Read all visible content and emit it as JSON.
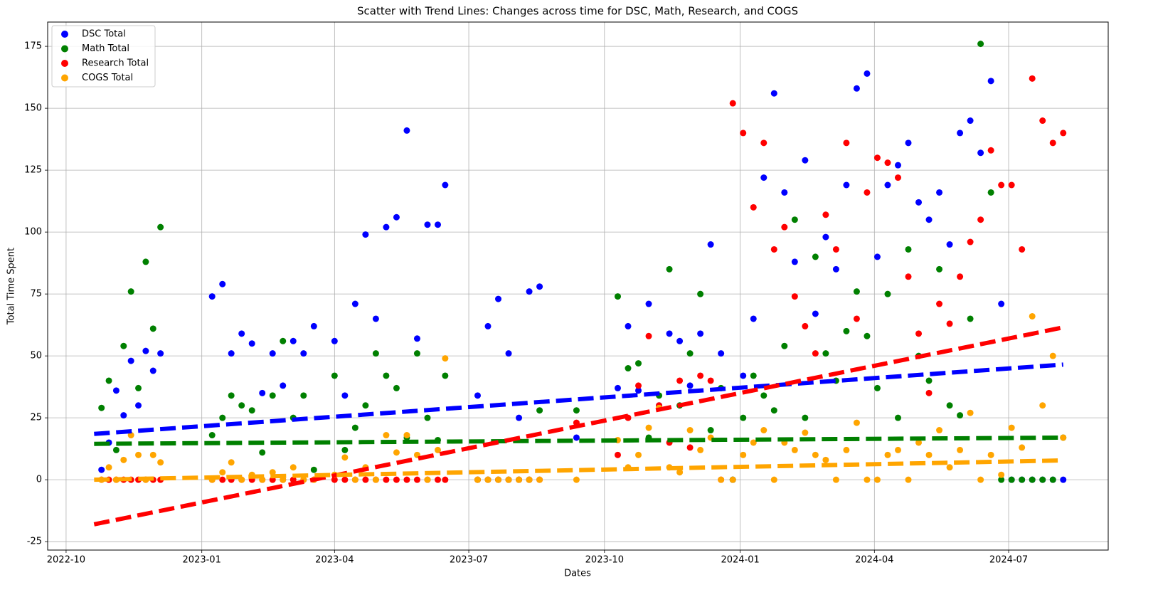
{
  "chart_data": {
    "type": "scatter",
    "title": "Scatter with Trend Lines: Changes across time for DSC, Math, Research, and COGS",
    "x_label": "Dates",
    "y_label": "Total Time Spent",
    "xlim": [
      19253.5,
      19972.5
    ],
    "ylim": [
      -28.4,
      184.8
    ],
    "xticks": [
      {
        "value": 19266,
        "label": "2022-10"
      },
      {
        "value": 19358,
        "label": "2023-01"
      },
      {
        "value": 19448,
        "label": "2023-04"
      },
      {
        "value": 19539,
        "label": "2023-07"
      },
      {
        "value": 19631,
        "label": "2023-10"
      },
      {
        "value": 19723,
        "label": "2024-01"
      },
      {
        "value": 19814,
        "label": "2024-04"
      },
      {
        "value": 19905,
        "label": "2024-07"
      }
    ],
    "yticks": [
      -25,
      0,
      25,
      50,
      75,
      100,
      125,
      150,
      175
    ],
    "grid": true,
    "legend": "upper left",
    "x": [
      19290,
      19295,
      19300,
      19305,
      19310,
      19315,
      19320,
      19325,
      19330,
      19365,
      19372,
      19378,
      19385,
      19392,
      19399,
      19406,
      19413,
      19420,
      19427,
      19434,
      19448,
      19455,
      19462,
      19469,
      19476,
      19483,
      19490,
      19497,
      19504,
      19511,
      19518,
      19523,
      19545,
      19552,
      19559,
      19566,
      19573,
      19580,
      19587,
      19612,
      19640,
      19647,
      19654,
      19661,
      19668,
      19675,
      19682,
      19689,
      19696,
      19703,
      19710,
      19718,
      19725,
      19732,
      19739,
      19746,
      19753,
      19760,
      19767,
      19774,
      19781,
      19788,
      19795,
      19802,
      19809,
      19816,
      19823,
      19830,
      19837,
      19844,
      19851,
      19858,
      19865,
      19872,
      19879,
      19886,
      19893,
      19900,
      19907,
      19914,
      19921,
      19928,
      19935,
      19942
    ],
    "series": [
      {
        "name": "DSC Total",
        "color": "#0000ff",
        "values": [
          4,
          15,
          36,
          26,
          48,
          30,
          52,
          44,
          51,
          74,
          79,
          51,
          59,
          55,
          35,
          51,
          38,
          56,
          51,
          62,
          56,
          34,
          71,
          99,
          65,
          102,
          106,
          141,
          57,
          103,
          103,
          119,
          34,
          62,
          73,
          51,
          25,
          76,
          78,
          17,
          37,
          62,
          36,
          71,
          30,
          59,
          56,
          38,
          59,
          95,
          51,
          0,
          42,
          65,
          122,
          156,
          116,
          88,
          129,
          67,
          98,
          85,
          119,
          158,
          164,
          90,
          119,
          127,
          136,
          112,
          105,
          116,
          95,
          140,
          145,
          132,
          161,
          71,
          0,
          0,
          0,
          0,
          0,
          0
        ],
        "trend": {
          "x": [
            19285,
            19942
          ],
          "values": [
            18.5,
            46.5
          ]
        }
      },
      {
        "name": "Math Total",
        "color": "#008000",
        "values": [
          29,
          40,
          12,
          54,
          76,
          37,
          88,
          61,
          102,
          18,
          25,
          34,
          30,
          28,
          11,
          34,
          56,
          25,
          34,
          4,
          42,
          12,
          21,
          30,
          51,
          42,
          37,
          17,
          51,
          25,
          16,
          42,
          0,
          0,
          0,
          0,
          0,
          0,
          28,
          28,
          74,
          45,
          47,
          17,
          34,
          85,
          30,
          51,
          75,
          20,
          37,
          0,
          25,
          42,
          34,
          28,
          54,
          105,
          25,
          90,
          51,
          40,
          60,
          76,
          58,
          37,
          75,
          25,
          93,
          50,
          40,
          85,
          30,
          26,
          65,
          176,
          116,
          0,
          0,
          0,
          0,
          0,
          0,
          17
        ],
        "trend": {
          "x": [
            19285,
            19942
          ],
          "values": [
            14.5,
            17
          ]
        }
      },
      {
        "name": "Research Total",
        "color": "#ff0000",
        "values": [
          0,
          0,
          0,
          0,
          0,
          0,
          0,
          0,
          0,
          0,
          0,
          0,
          0,
          0,
          0,
          0,
          0,
          0,
          0,
          0,
          0,
          0,
          0,
          0,
          0,
          0,
          0,
          0,
          0,
          0,
          0,
          0,
          0,
          0,
          0,
          0,
          0,
          0,
          0,
          23,
          10,
          25,
          38,
          58,
          30,
          15,
          40,
          13,
          42,
          40,
          0,
          152,
          140,
          110,
          136,
          93,
          102,
          74,
          62,
          51,
          107,
          93,
          136,
          65,
          116,
          130,
          128,
          122,
          82,
          59,
          35,
          71,
          63,
          82,
          96,
          105,
          133,
          119,
          119,
          93,
          162,
          145,
          136,
          140
        ],
        "trend": {
          "x": [
            19285,
            19942
          ],
          "values": [
            -18,
            61.5
          ]
        }
      },
      {
        "name": "COGS Total",
        "color": "#ffa500",
        "values": [
          0,
          5,
          0,
          8,
          18,
          10,
          0,
          10,
          7,
          0,
          3,
          7,
          0,
          2,
          0,
          3,
          0,
          5,
          0,
          0,
          2,
          9,
          0,
          5,
          0,
          18,
          11,
          18,
          10,
          0,
          12,
          49,
          0,
          0,
          0,
          0,
          0,
          0,
          0,
          0,
          16,
          5,
          10,
          21,
          29,
          5,
          3,
          20,
          12,
          17,
          0,
          0,
          10,
          15,
          20,
          0,
          15,
          12,
          19,
          10,
          8,
          0,
          12,
          23,
          0,
          0,
          10,
          12,
          0,
          15,
          10,
          20,
          5,
          12,
          27,
          0,
          10,
          2,
          21,
          13,
          66,
          30,
          50,
          17
        ],
        "trend": {
          "x": [
            19285,
            19942
          ],
          "values": [
            0,
            7.8
          ]
        }
      }
    ]
  }
}
